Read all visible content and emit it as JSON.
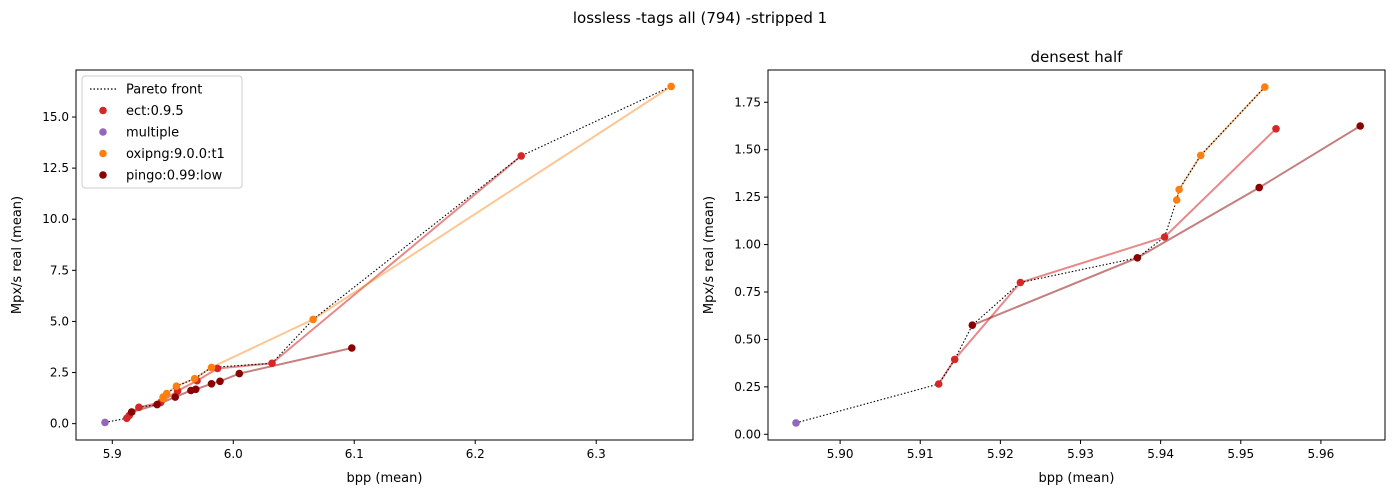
{
  "suptitle": "lossless -tags all (794) -stripped 1",
  "colors": {
    "ect:0.9.5": "#d62728",
    "multiple": "#9467bd",
    "oxipng:9.0.0:t1": "#ff7f0e",
    "pingo:0.99:low": "#8b0000",
    "pareto": "#000000"
  },
  "chart_data": [
    {
      "type": "scatter",
      "title": "",
      "xlabel": "bpp (mean)",
      "ylabel": "Mpx/s real (mean)",
      "xlim": [
        5.87,
        6.38
      ],
      "ylim": [
        -0.8,
        17.3
      ],
      "xticks": [
        5.9,
        6.0,
        6.1,
        6.2,
        6.3
      ],
      "xtick_labels": [
        "5.9",
        "6.0",
        "6.1",
        "6.2",
        "6.3"
      ],
      "yticks": [
        0,
        2.5,
        5,
        7.5,
        10,
        12.5,
        15
      ],
      "ytick_labels": [
        "0.0",
        "2.5",
        "5.0",
        "7.5",
        "10.0",
        "12.5",
        "15.0"
      ],
      "grid": false,
      "legend": {
        "placement": "top-left",
        "entries": [
          {
            "label": "Pareto front",
            "kind": "line",
            "series": "pareto"
          },
          {
            "label": "ect:0.9.5",
            "kind": "marker",
            "series": "ect:0.9.5"
          },
          {
            "label": "multiple",
            "kind": "marker",
            "series": "multiple"
          },
          {
            "label": "oxipng:9.0.0:t1",
            "kind": "marker",
            "series": "oxipng:9.0.0:t1"
          },
          {
            "label": "pingo:0.99:low",
            "kind": "marker",
            "series": "pingo:0.99:low"
          }
        ]
      },
      "series": [
        {
          "name": "ect:0.9.5",
          "points": [
            [
              5.912,
              0.26
            ],
            [
              5.914,
              0.4
            ],
            [
              5.916,
              0.57
            ],
            [
              5.922,
              0.8
            ],
            [
              5.94,
              1.04
            ],
            [
              5.954,
              1.6
            ],
            [
              5.97,
              2.1
            ],
            [
              5.987,
              2.7
            ],
            [
              6.032,
              2.95
            ],
            [
              6.238,
              13.1
            ]
          ]
        },
        {
          "name": "multiple",
          "points": [
            [
              5.894,
              0.06
            ]
          ]
        },
        {
          "name": "oxipng:9.0.0:t1",
          "points": [
            [
              5.942,
              1.23
            ],
            [
              5.942,
              1.3
            ],
            [
              5.945,
              1.47
            ],
            [
              5.953,
              1.83
            ],
            [
              5.968,
              2.2
            ],
            [
              5.982,
              2.75
            ],
            [
              6.066,
              5.1
            ],
            [
              6.362,
              16.5
            ]
          ]
        },
        {
          "name": "pingo:0.99:low",
          "points": [
            [
              5.916,
              0.57
            ],
            [
              5.937,
              0.93
            ],
            [
              5.952,
              1.3
            ],
            [
              5.965,
              1.62
            ],
            [
              5.969,
              1.68
            ],
            [
              5.982,
              1.95
            ],
            [
              5.989,
              2.07
            ],
            [
              6.005,
              2.45
            ],
            [
              6.098,
              3.7
            ]
          ]
        }
      ],
      "pareto": [
        [
          5.894,
          0.06
        ],
        [
          5.912,
          0.26
        ],
        [
          5.914,
          0.4
        ],
        [
          5.916,
          0.57
        ],
        [
          5.922,
          0.8
        ],
        [
          5.937,
          0.93
        ],
        [
          5.94,
          1.04
        ],
        [
          5.942,
          1.23
        ],
        [
          5.942,
          1.3
        ],
        [
          5.945,
          1.47
        ],
        [
          5.953,
          1.83
        ],
        [
          5.968,
          2.2
        ],
        [
          5.982,
          2.75
        ],
        [
          6.032,
          2.95
        ],
        [
          6.066,
          5.1
        ],
        [
          6.238,
          13.1
        ],
        [
          6.362,
          16.5
        ]
      ]
    },
    {
      "type": "scatter",
      "title": "densest half",
      "xlabel": "bpp (mean)",
      "ylabel": "Mpx/s real (mean)",
      "xlim": [
        5.891,
        5.968
      ],
      "ylim": [
        -0.03,
        1.92
      ],
      "xticks": [
        5.9,
        5.91,
        5.92,
        5.93,
        5.94,
        5.95,
        5.96
      ],
      "xtick_labels": [
        "5.90",
        "5.91",
        "5.92",
        "5.93",
        "5.94",
        "5.95",
        "5.96"
      ],
      "yticks": [
        0,
        0.25,
        0.5,
        0.75,
        1.0,
        1.25,
        1.5,
        1.75
      ],
      "ytick_labels": [
        "0.00",
        "0.25",
        "0.50",
        "0.75",
        "1.00",
        "1.25",
        "1.50",
        "1.75"
      ],
      "grid": false,
      "series": [
        {
          "name": "ect:0.9.5",
          "points": [
            [
              5.9123,
              0.265
            ],
            [
              5.9143,
              0.395
            ],
            [
              5.9225,
              0.8
            ],
            [
              5.9405,
              1.04
            ],
            [
              5.9544,
              1.61
            ]
          ]
        },
        {
          "name": "multiple",
          "points": [
            [
              5.8945,
              0.06
            ]
          ]
        },
        {
          "name": "oxipng:9.0.0:t1",
          "points": [
            [
              5.942,
              1.235
            ],
            [
              5.9423,
              1.29
            ],
            [
              5.945,
              1.47
            ],
            [
              5.953,
              1.83
            ]
          ]
        },
        {
          "name": "pingo:0.99:low",
          "points": [
            [
              5.9165,
              0.575
            ],
            [
              5.9371,
              0.93
            ],
            [
              5.9523,
              1.3
            ],
            [
              5.9649,
              1.625
            ]
          ]
        }
      ],
      "pareto": [
        [
          5.8945,
          0.06
        ],
        [
          5.9123,
          0.265
        ],
        [
          5.9143,
          0.395
        ],
        [
          5.9165,
          0.575
        ],
        [
          5.9225,
          0.8
        ],
        [
          5.9371,
          0.93
        ],
        [
          5.9405,
          1.04
        ],
        [
          5.942,
          1.235
        ],
        [
          5.9423,
          1.29
        ],
        [
          5.945,
          1.47
        ],
        [
          5.953,
          1.83
        ]
      ]
    }
  ]
}
